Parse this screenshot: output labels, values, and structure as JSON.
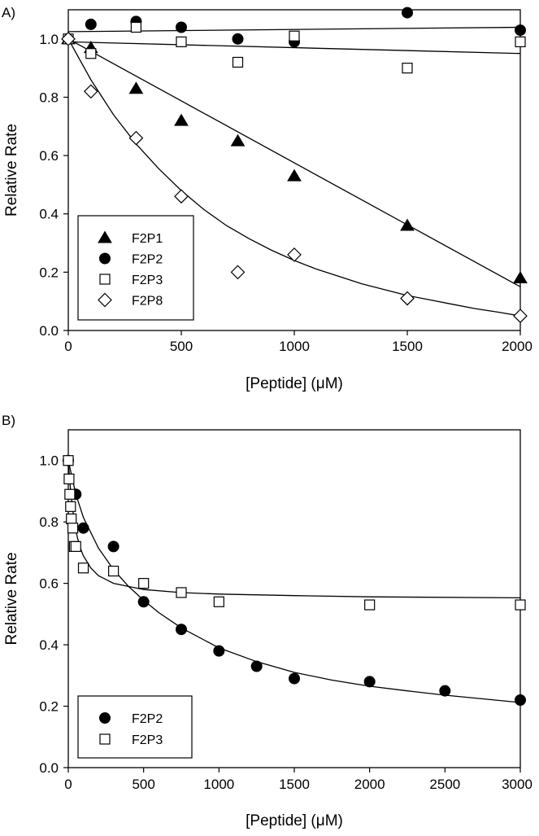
{
  "chart_data": [
    {
      "type": "scatter",
      "panel_label": "A)",
      "xlabel": "[Peptide] (μM)",
      "ylabel": "Relative Rate",
      "xlim": [
        0,
        2000
      ],
      "ylim": [
        0,
        1.1
      ],
      "xticks": [
        0,
        500,
        1000,
        1500,
        2000
      ],
      "yticks": [
        0.0,
        0.2,
        0.4,
        0.6,
        0.8,
        1.0
      ],
      "ytick_labels": [
        "0.0",
        "0.2",
        "0.4",
        "0.6",
        "0.8",
        "1.0"
      ],
      "grid": false,
      "legend_position": "bottom-left",
      "series": [
        {
          "name": "F2P1",
          "marker": "filled-triangle",
          "points": [
            [
              0,
              1.0
            ],
            [
              100,
              0.97
            ],
            [
              300,
              0.83
            ],
            [
              500,
              0.72
            ],
            [
              750,
              0.65
            ],
            [
              1000,
              0.53
            ],
            [
              1500,
              0.36
            ],
            [
              2000,
              0.18
            ]
          ],
          "fit": [
            [
              0,
              1.0
            ],
            [
              2000,
              0.15
            ]
          ]
        },
        {
          "name": "F2P2",
          "marker": "filled-circle",
          "points": [
            [
              0,
              1.0
            ],
            [
              100,
              1.05
            ],
            [
              300,
              1.06
            ],
            [
              500,
              1.04
            ],
            [
              750,
              1.0
            ],
            [
              1000,
              0.99
            ],
            [
              1500,
              1.09
            ],
            [
              2000,
              1.03
            ]
          ],
          "fit": [
            [
              0,
              1.025
            ],
            [
              2000,
              1.04
            ]
          ]
        },
        {
          "name": "F2P3",
          "marker": "open-square",
          "points": [
            [
              0,
              1.0
            ],
            [
              100,
              0.95
            ],
            [
              300,
              1.04
            ],
            [
              500,
              0.99
            ],
            [
              750,
              0.92
            ],
            [
              1000,
              1.01
            ],
            [
              1500,
              0.9
            ],
            [
              2000,
              0.99
            ]
          ],
          "fit": [
            [
              0,
              0.99
            ],
            [
              2000,
              0.95
            ]
          ]
        },
        {
          "name": "F2P8",
          "marker": "open-diamond",
          "points": [
            [
              0,
              1.0
            ],
            [
              100,
              0.82
            ],
            [
              300,
              0.66
            ],
            [
              500,
              0.46
            ],
            [
              750,
              0.2
            ],
            [
              1000,
              0.26
            ],
            [
              1500,
              0.11
            ],
            [
              2000,
              0.05
            ]
          ],
          "fit": [
            [
              0,
              1.0
            ],
            [
              100,
              0.86
            ],
            [
              200,
              0.74
            ],
            [
              300,
              0.64
            ],
            [
              400,
              0.555
            ],
            [
              500,
              0.48
            ],
            [
              600,
              0.415
            ],
            [
              700,
              0.36
            ],
            [
              800,
              0.315
            ],
            [
              900,
              0.275
            ],
            [
              1000,
              0.24
            ],
            [
              1100,
              0.21
            ],
            [
              1200,
              0.185
            ],
            [
              1300,
              0.16
            ],
            [
              1400,
              0.14
            ],
            [
              1500,
              0.12
            ],
            [
              1600,
              0.105
            ],
            [
              1700,
              0.09
            ],
            [
              1800,
              0.075
            ],
            [
              1900,
              0.063
            ],
            [
              2000,
              0.05
            ]
          ]
        }
      ]
    },
    {
      "type": "scatter",
      "panel_label": "B)",
      "xlabel": "[Peptide] (μM)",
      "ylabel": "Relative Rate",
      "xlim": [
        0,
        3000
      ],
      "ylim": [
        0,
        1.1
      ],
      "xticks": [
        0,
        500,
        1000,
        1500,
        2000,
        2500,
        3000
      ],
      "yticks": [
        0.0,
        0.2,
        0.4,
        0.6,
        0.8,
        1.0
      ],
      "ytick_labels": [
        "0.0",
        "0.2",
        "0.4",
        "0.6",
        "0.8",
        "1.0"
      ],
      "grid": false,
      "legend_position": "bottom-left",
      "series": [
        {
          "name": "F2P2",
          "marker": "filled-circle",
          "points": [
            [
              0,
              1.0
            ],
            [
              50,
              0.89
            ],
            [
              100,
              0.78
            ],
            [
              300,
              0.72
            ],
            [
              500,
              0.54
            ],
            [
              750,
              0.45
            ],
            [
              1000,
              0.38
            ],
            [
              1250,
              0.33
            ],
            [
              1500,
              0.29
            ],
            [
              2000,
              0.28
            ],
            [
              2500,
              0.25
            ],
            [
              3000,
              0.22
            ]
          ],
          "fit": [
            [
              0,
              1.0
            ],
            [
              50,
              0.89
            ],
            [
              100,
              0.815
            ],
            [
              200,
              0.715
            ],
            [
              300,
              0.645
            ],
            [
              400,
              0.59
            ],
            [
              500,
              0.545
            ],
            [
              600,
              0.505
            ],
            [
              750,
              0.455
            ],
            [
              1000,
              0.39
            ],
            [
              1250,
              0.345
            ],
            [
              1500,
              0.31
            ],
            [
              1750,
              0.285
            ],
            [
              2000,
              0.265
            ],
            [
              2250,
              0.25
            ],
            [
              2500,
              0.236
            ],
            [
              2750,
              0.224
            ],
            [
              3000,
              0.212
            ]
          ]
        },
        {
          "name": "F2P3",
          "marker": "open-square",
          "points": [
            [
              0,
              1.0
            ],
            [
              5,
              0.94
            ],
            [
              10,
              0.89
            ],
            [
              15,
              0.85
            ],
            [
              20,
              0.81
            ],
            [
              30,
              0.78
            ],
            [
              40,
              0.72
            ],
            [
              50,
              0.72
            ],
            [
              100,
              0.65
            ],
            [
              300,
              0.64
            ],
            [
              500,
              0.6
            ],
            [
              750,
              0.57
            ],
            [
              1000,
              0.54
            ],
            [
              2000,
              0.53
            ],
            [
              3000,
              0.53
            ]
          ],
          "fit": [
            [
              0,
              1.0
            ],
            [
              10,
              0.93
            ],
            [
              20,
              0.88
            ],
            [
              40,
              0.8
            ],
            [
              60,
              0.75
            ],
            [
              80,
              0.715
            ],
            [
              100,
              0.69
            ],
            [
              150,
              0.65
            ],
            [
              200,
              0.625
            ],
            [
              300,
              0.6
            ],
            [
              500,
              0.58
            ],
            [
              750,
              0.57
            ],
            [
              1000,
              0.565
            ],
            [
              1500,
              0.56
            ],
            [
              2000,
              0.556
            ],
            [
              3000,
              0.553
            ]
          ]
        }
      ]
    }
  ]
}
